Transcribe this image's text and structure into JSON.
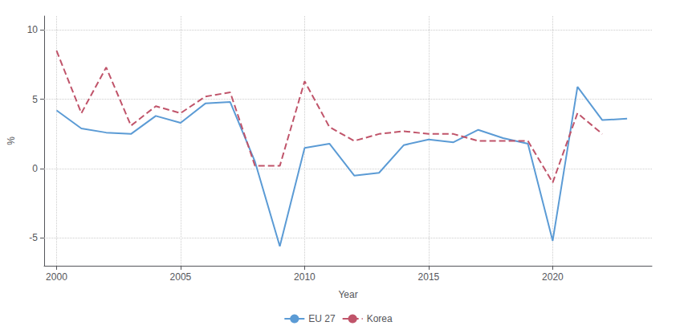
{
  "chart_data": {
    "type": "line",
    "x": [
      2000,
      2001,
      2002,
      2003,
      2004,
      2005,
      2006,
      2007,
      2008,
      2009,
      2010,
      2011,
      2012,
      2013,
      2014,
      2015,
      2016,
      2017,
      2018,
      2019,
      2020,
      2021,
      2022,
      2023
    ],
    "series": [
      {
        "name": "EU 27",
        "color": "#5b9bd5",
        "line_style": "solid",
        "values": [
          4.2,
          2.9,
          2.6,
          2.5,
          3.8,
          3.3,
          4.7,
          4.8,
          0.5,
          -5.6,
          1.5,
          1.8,
          -0.5,
          -0.3,
          1.7,
          2.1,
          1.9,
          2.8,
          2.2,
          1.8,
          -5.2,
          5.9,
          3.5,
          3.6
        ]
      },
      {
        "name": "Korea",
        "color": "#c0546a",
        "line_style": "dashed",
        "values": [
          8.5,
          4.0,
          7.3,
          3.1,
          4.5,
          4.0,
          5.2,
          5.5,
          0.2,
          0.2,
          6.3,
          3.0,
          2.0,
          2.5,
          2.7,
          2.5,
          2.5,
          2.0,
          2.0,
          2.0,
          -1.0,
          4.0,
          2.5,
          null
        ]
      }
    ],
    "xlabel": "Year",
    "ylabel": "%",
    "xlim": [
      1999.5,
      2024
    ],
    "xticks": [
      2000,
      2005,
      2010,
      2015,
      2020
    ],
    "ylim": [
      -7,
      11
    ],
    "yticks": [
      -5,
      0,
      5,
      10
    ],
    "grid": true,
    "legend": "bottom"
  }
}
